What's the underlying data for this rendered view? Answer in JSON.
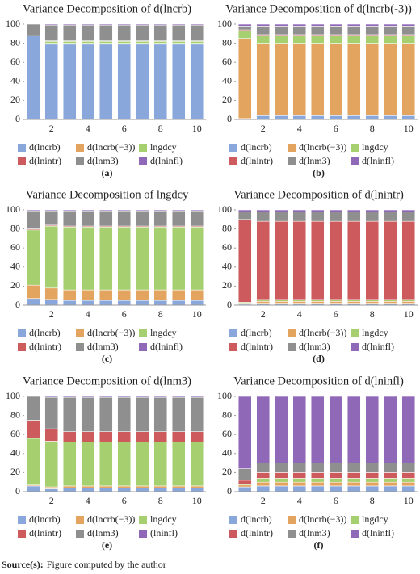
{
  "chart_data": [
    {
      "type": "bar",
      "stacked": true,
      "title": "Variance Decomposition of d(lncrb)",
      "caption": "(a)",
      "categories": [
        null,
        "2",
        null,
        "4",
        null,
        "6",
        null,
        "8",
        null,
        "10"
      ],
      "ylim": [
        0,
        100
      ],
      "yticks": [
        0,
        20,
        40,
        60,
        80,
        100
      ],
      "series": [
        {
          "name": "d(lncrb)",
          "color": "#8aa7dc",
          "values": [
            88,
            79,
            79,
            79,
            79,
            79,
            79,
            79,
            79,
            79
          ]
        },
        {
          "name": "d(lncrb(−3))",
          "color": "#e3a45f",
          "values": [
            0,
            1,
            1,
            1,
            1,
            1,
            1,
            1,
            1,
            1
          ]
        },
        {
          "name": "lngdcy",
          "color": "#a6d06f",
          "values": [
            0,
            2,
            2,
            2,
            2,
            2,
            2,
            2,
            2,
            2
          ]
        },
        {
          "name": "d(lnintr)",
          "color": "#cd5b5d",
          "values": [
            0,
            0.5,
            0.5,
            0.5,
            0.5,
            0.5,
            0.5,
            0.5,
            0.5,
            0.5
          ]
        },
        {
          "name": "d(lnm3)",
          "color": "#8f8f8f",
          "values": [
            12,
            16.5,
            16.5,
            16.5,
            16.5,
            16.5,
            16.5,
            16.5,
            16.5,
            16.5
          ]
        },
        {
          "name": "d(lninfl)",
          "color": "#9068b8",
          "values": [
            0,
            1,
            1,
            1,
            1,
            1,
            1,
            1,
            1,
            1
          ]
        }
      ]
    },
    {
      "type": "bar",
      "stacked": true,
      "title": "Variance Decomposition of d(lncrb(-3))",
      "caption": "(b)",
      "categories": [
        null,
        "2",
        null,
        "4",
        null,
        "6",
        null,
        "8",
        null,
        "10"
      ],
      "ylim": [
        0,
        100
      ],
      "yticks": [
        0,
        20,
        40,
        60,
        80,
        100
      ],
      "series": [
        {
          "name": "d(lncrb)",
          "color": "#8aa7dc",
          "values": [
            1,
            4,
            4,
            4,
            4,
            4,
            4,
            4,
            4,
            4
          ]
        },
        {
          "name": "d(lncrb(−3))",
          "color": "#e3a45f",
          "values": [
            84,
            76,
            76,
            76,
            76,
            76,
            76,
            76,
            76,
            76
          ]
        },
        {
          "name": "lngdcy",
          "color": "#a6d06f",
          "values": [
            8,
            8,
            8,
            8,
            8,
            8,
            8,
            8,
            8,
            8
          ]
        },
        {
          "name": "d(lnintr)",
          "color": "#cd5b5d",
          "values": [
            1,
            1,
            1,
            1,
            1,
            1,
            1,
            1,
            1,
            1
          ]
        },
        {
          "name": "d(lnm3)",
          "color": "#8f8f8f",
          "values": [
            4,
            9,
            9,
            9,
            9,
            9,
            9,
            9,
            9,
            9
          ]
        },
        {
          "name": "d(lninfl)",
          "color": "#9068b8",
          "values": [
            2,
            2,
            2,
            2,
            2,
            2,
            2,
            2,
            2,
            2
          ]
        }
      ]
    },
    {
      "type": "bar",
      "stacked": true,
      "title": "Variance Decomposition of lngdcy",
      "caption": "(c)",
      "categories": [
        null,
        "2",
        null,
        "4",
        null,
        "6",
        null,
        "8",
        null,
        "10"
      ],
      "ylim": [
        0,
        100
      ],
      "yticks": [
        0,
        20,
        40,
        60,
        80,
        100
      ],
      "series": [
        {
          "name": "d(lncrb)",
          "color": "#8aa7dc",
          "values": [
            7,
            6,
            5,
            5,
            5,
            5,
            5,
            5,
            5,
            5
          ]
        },
        {
          "name": "d(lncrb(−3))",
          "color": "#e3a45f",
          "values": [
            14,
            12,
            11,
            11,
            11,
            11,
            11,
            11,
            11,
            11
          ]
        },
        {
          "name": "lngdcy",
          "color": "#a6d06f",
          "values": [
            58,
            65,
            66,
            66,
            66,
            66,
            66,
            66,
            66,
            66
          ]
        },
        {
          "name": "d(lnintr)",
          "color": "#cd5b5d",
          "values": [
            1,
            1,
            1,
            1,
            1,
            1,
            1,
            1,
            1,
            1
          ]
        },
        {
          "name": "d(lnm3)",
          "color": "#8f8f8f",
          "values": [
            19,
            15,
            16,
            16,
            16,
            16,
            16,
            16,
            16,
            16
          ]
        },
        {
          "name": "d(lninfl)",
          "color": "#9068b8",
          "values": [
            1,
            1,
            1,
            1,
            1,
            1,
            1,
            1,
            1,
            1
          ]
        }
      ]
    },
    {
      "type": "bar",
      "stacked": true,
      "title": "Variance Decomposition of d(lnintr)",
      "caption": "(d)",
      "categories": [
        null,
        "2",
        null,
        "4",
        null,
        "6",
        null,
        "8",
        null,
        "10"
      ],
      "ylim": [
        0,
        100
      ],
      "yticks": [
        0,
        20,
        40,
        60,
        80,
        100
      ],
      "series": [
        {
          "name": "d(lncrb)",
          "color": "#8aa7dc",
          "values": [
            1,
            2,
            2,
            2,
            2,
            2,
            2,
            2,
            2,
            2
          ]
        },
        {
          "name": "d(lncrb(−3))",
          "color": "#e3a45f",
          "values": [
            1,
            2,
            2,
            2,
            2,
            2,
            2,
            2,
            2,
            2
          ]
        },
        {
          "name": "lngdcy",
          "color": "#a6d06f",
          "values": [
            1,
            2,
            2,
            2,
            2,
            2,
            2,
            2,
            2,
            2
          ]
        },
        {
          "name": "d(lnintr)",
          "color": "#cd5b5d",
          "values": [
            87,
            82,
            82,
            82,
            82,
            82,
            82,
            82,
            82,
            82
          ]
        },
        {
          "name": "d(lnm3)",
          "color": "#8f8f8f",
          "values": [
            8,
            10,
            10,
            10,
            10,
            10,
            10,
            10,
            10,
            10
          ]
        },
        {
          "name": "d(lninfl)",
          "color": "#9068b8",
          "values": [
            2,
            2,
            2,
            2,
            2,
            2,
            2,
            2,
            2,
            2
          ]
        }
      ]
    },
    {
      "type": "bar",
      "stacked": true,
      "title": "Variance Decomposition of d(lnm3)",
      "caption": "(e)",
      "categories": [
        null,
        "2",
        null,
        "4",
        null,
        "6",
        null,
        "8",
        null,
        "10"
      ],
      "ylim": [
        0,
        100
      ],
      "yticks": [
        0,
        20,
        40,
        60,
        80,
        100
      ],
      "series": [
        {
          "name": "d(lncrb)",
          "color": "#8aa7dc",
          "values": [
            6,
            3,
            4,
            4,
            4,
            4,
            4,
            4,
            4,
            4
          ]
        },
        {
          "name": "d(lncrb(−3))",
          "color": "#e3a45f",
          "values": [
            1,
            2,
            2,
            2,
            2,
            2,
            2,
            2,
            2,
            2
          ]
        },
        {
          "name": "lngdcy",
          "color": "#a6d06f",
          "values": [
            49,
            48,
            46,
            46,
            46,
            46,
            46,
            46,
            46,
            46
          ]
        },
        {
          "name": "d(lnintr)",
          "color": "#cd5b5d",
          "values": [
            19,
            13,
            11,
            11,
            11,
            11,
            11,
            11,
            11,
            11
          ]
        },
        {
          "name": "d(lnm3)",
          "color": "#8f8f8f",
          "values": [
            25,
            33,
            36,
            36,
            36,
            36,
            36,
            36,
            36,
            36
          ]
        },
        {
          "name": "(lninfl)",
          "color": "#9068b8",
          "values": [
            0,
            1,
            1,
            1,
            1,
            1,
            1,
            1,
            1,
            1
          ]
        }
      ]
    },
    {
      "type": "bar",
      "stacked": true,
      "title": "Variance Decomposition of d(lninfl)",
      "caption": "(f)",
      "categories": [
        null,
        "2",
        null,
        "4",
        null,
        "6",
        null,
        "8",
        null,
        "10"
      ],
      "ylim": [
        0,
        100
      ],
      "yticks": [
        0,
        20,
        40,
        60,
        80,
        100
      ],
      "series": [
        {
          "name": "d(lncrb)",
          "color": "#8aa7dc",
          "values": [
            5,
            6,
            6,
            6,
            6,
            6,
            6,
            6,
            6,
            6
          ]
        },
        {
          "name": "d(lncrb(−3))",
          "color": "#e3a45f",
          "values": [
            2,
            4,
            4,
            4,
            4,
            4,
            4,
            4,
            4,
            4
          ]
        },
        {
          "name": "lngdcy",
          "color": "#a6d06f",
          "values": [
            1,
            4,
            4,
            4,
            4,
            4,
            4,
            4,
            4,
            4
          ]
        },
        {
          "name": "d(lnintr)",
          "color": "#cd5b5d",
          "values": [
            4,
            6,
            6,
            6,
            6,
            6,
            6,
            6,
            6,
            6
          ]
        },
        {
          "name": "d(lnm3)",
          "color": "#8f8f8f",
          "values": [
            12,
            10,
            10,
            10,
            10,
            10,
            10,
            10,
            10,
            10
          ]
        },
        {
          "name": "d(lninfl)",
          "color": "#9068b8",
          "values": [
            76,
            70,
            70,
            70,
            70,
            70,
            70,
            70,
            70,
            70
          ]
        }
      ]
    }
  ],
  "source": {
    "label": "Source(s):",
    "text": "Figure computed by the author"
  }
}
